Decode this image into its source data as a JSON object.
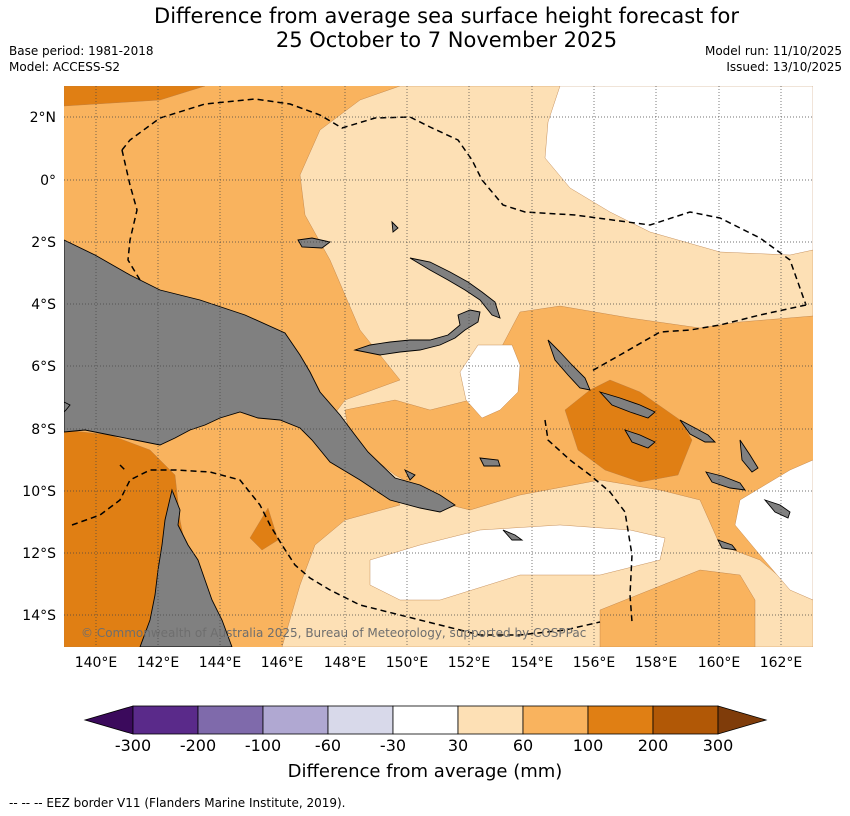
{
  "title": {
    "line1": "Difference from average sea surface height forecast for",
    "line2": "25 October to 7 November 2025"
  },
  "meta": {
    "base_period": "Base period: 1981-2018",
    "model": "Model: ACCESS-S2",
    "model_run": "Model run: 11/10/2025",
    "issued": "Issued: 13/10/2025"
  },
  "map": {
    "lon_range": [
      139,
      163
    ],
    "lat_range": [
      -15,
      3
    ],
    "lon_ticks": [
      "140°E",
      "142°E",
      "144°E",
      "146°E",
      "148°E",
      "150°E",
      "152°E",
      "154°E",
      "156°E",
      "158°E",
      "160°E",
      "162°E"
    ],
    "lat_ticks": [
      "2°N",
      "0°",
      "2°S",
      "4°S",
      "6°S",
      "8°S",
      "10°S",
      "12°S",
      "14°S"
    ],
    "grid": "dotted",
    "land_color": "#808080",
    "copyright": "© Commonwealth of Australia 2025, Bureau of Meteorology, supported by COSPPac"
  },
  "colorbar": {
    "title": "Difference from average (mm)",
    "labels": [
      "-300",
      "-200",
      "-100",
      "-60",
      "-30",
      "30",
      "60",
      "100",
      "200",
      "300"
    ],
    "colors": [
      "#3b0a5c",
      "#5a2a8a",
      "#7f6aab",
      "#b0a8d2",
      "#d8d9ea",
      "#ffffff",
      "#fde0b5",
      "#f9b35e",
      "#e07f14",
      "#b15806",
      "#7f3c0a"
    ]
  },
  "footnote": "--  --  -- EEZ border V11 (Flanders Marine Institute, 2019)."
}
